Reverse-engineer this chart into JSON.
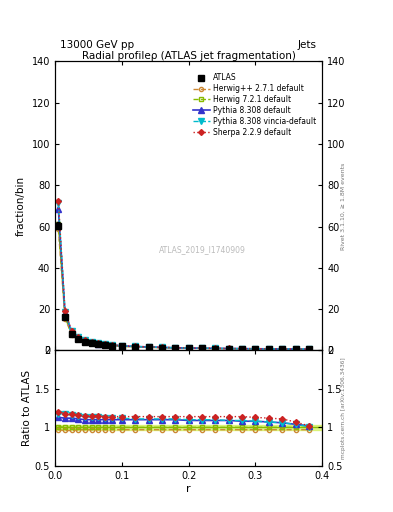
{
  "title": "Radial profileρ (ATLAS jet fragmentation)",
  "top_left_label": "13000 GeV pp",
  "top_right_label": "Jets",
  "right_label_main": "Rivet 3.1.10, ≥ 1.8M events",
  "right_label_sub": "mcplots.cern.ch [arXiv:1306.3436]",
  "watermark": "ATLAS_2019_I1740909",
  "ylabel_main": "fraction/bin",
  "ylabel_ratio": "Ratio to ATLAS",
  "xlabel": "r",
  "xlim": [
    0,
    0.4
  ],
  "ylim_main": [
    0,
    140
  ],
  "ylim_ratio": [
    0.5,
    2.0
  ],
  "yticks_main": [
    0,
    20,
    40,
    60,
    80,
    100,
    120,
    140
  ],
  "yticks_ratio": [
    0.5,
    1.0,
    1.5,
    2.0
  ],
  "r_values": [
    0.005,
    0.015,
    0.025,
    0.035,
    0.045,
    0.055,
    0.065,
    0.075,
    0.085,
    0.1,
    0.12,
    0.14,
    0.16,
    0.18,
    0.2,
    0.22,
    0.24,
    0.26,
    0.28,
    0.3,
    0.32,
    0.34,
    0.36,
    0.38
  ],
  "atlas_data": [
    60.5,
    16.0,
    8.0,
    5.5,
    4.2,
    3.5,
    3.0,
    2.6,
    2.3,
    2.0,
    1.7,
    1.5,
    1.3,
    1.15,
    1.05,
    0.95,
    0.88,
    0.82,
    0.77,
    0.72,
    0.68,
    0.64,
    0.6,
    0.56
  ],
  "atlas_err": [
    1.5,
    0.5,
    0.3,
    0.2,
    0.15,
    0.12,
    0.1,
    0.09,
    0.08,
    0.07,
    0.06,
    0.05,
    0.04,
    0.04,
    0.03,
    0.03,
    0.03,
    0.02,
    0.02,
    0.02,
    0.02,
    0.02,
    0.02,
    0.02
  ],
  "herwig_pp_ratio": [
    0.97,
    0.96,
    0.96,
    0.97,
    0.97,
    0.97,
    0.97,
    0.97,
    0.97,
    0.97,
    0.97,
    0.97,
    0.97,
    0.97,
    0.97,
    0.97,
    0.97,
    0.97,
    0.97,
    0.97,
    0.97,
    0.97,
    0.97,
    0.97
  ],
  "herwig72_ratio": [
    1.01,
    1.0,
    1.0,
    1.0,
    1.0,
    1.0,
    1.0,
    1.0,
    1.0,
    1.0,
    1.0,
    1.0,
    1.0,
    1.0,
    1.0,
    1.0,
    1.0,
    1.0,
    1.0,
    1.0,
    1.0,
    1.0,
    1.0,
    1.0
  ],
  "pythia_ratio": [
    1.13,
    1.12,
    1.12,
    1.11,
    1.1,
    1.1,
    1.1,
    1.1,
    1.1,
    1.1,
    1.1,
    1.1,
    1.1,
    1.1,
    1.09,
    1.09,
    1.09,
    1.09,
    1.08,
    1.08,
    1.07,
    1.06,
    1.04,
    1.02
  ],
  "vincia_ratio": [
    1.18,
    1.17,
    1.16,
    1.15,
    1.14,
    1.13,
    1.13,
    1.12,
    1.12,
    1.12,
    1.11,
    1.11,
    1.11,
    1.11,
    1.1,
    1.1,
    1.1,
    1.09,
    1.09,
    1.08,
    1.07,
    1.06,
    1.04,
    1.01
  ],
  "sherpa_ratio": [
    1.2,
    1.18,
    1.17,
    1.16,
    1.15,
    1.15,
    1.15,
    1.14,
    1.14,
    1.14,
    1.14,
    1.14,
    1.14,
    1.14,
    1.14,
    1.14,
    1.14,
    1.14,
    1.14,
    1.13,
    1.12,
    1.11,
    1.07,
    1.02
  ],
  "color_herwig_pp": "#cc8833",
  "color_herwig72": "#88bb00",
  "color_pythia": "#3333cc",
  "color_vincia": "#00bbcc",
  "color_sherpa": "#cc2222",
  "color_atlas": "#000000",
  "bg_color": "#ffffff",
  "band_color": "#ccee44"
}
